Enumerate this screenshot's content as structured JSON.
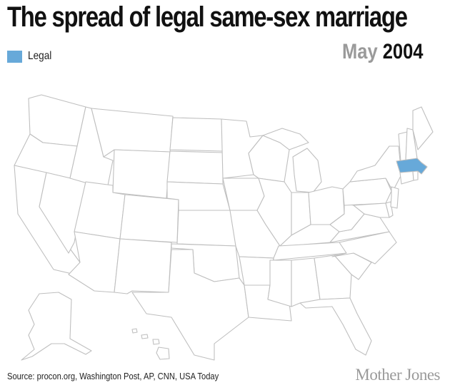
{
  "title": "The spread of legal same-sex marriage",
  "legend": {
    "label": "Legal",
    "color": "#67a9d9"
  },
  "date": {
    "month": "May",
    "year": "2004"
  },
  "map": {
    "fill_default": "#ffffff",
    "stroke": "#bfbfbf",
    "legal_states": [
      "MA"
    ]
  },
  "source": "Source: procon.org, Washington Post, AP, CNN, USA Today",
  "brand": "Mother Jones"
}
